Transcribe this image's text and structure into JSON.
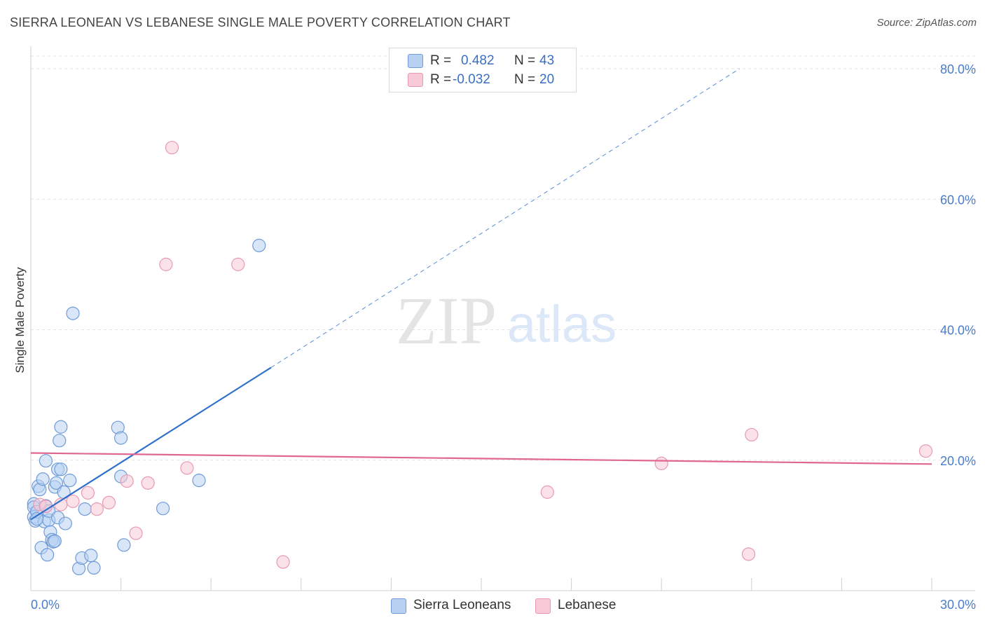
{
  "header": {
    "title": "SIERRA LEONEAN VS LEBANESE SINGLE MALE POVERTY CORRELATION CHART",
    "source": "Source: ZipAtlas.com"
  },
  "watermark": {
    "zip": "ZIP",
    "atlas": "atlas"
  },
  "legend": {
    "rows": [
      {
        "r_label": "R =",
        "r_value": "0.482",
        "n_label": "N =",
        "n_value": "43"
      },
      {
        "r_label": "R =",
        "r_value": "-0.032",
        "n_label": "N =",
        "n_value": "20"
      }
    ]
  },
  "bottom_legend": {
    "series1": "Sierra Leoneans",
    "series2": "Lebanese"
  },
  "colors": {
    "blue_fill": "#b8d1f3",
    "blue_stroke": "#6f9bd8",
    "blue_line": "#2f6fcc",
    "pink_fill": "#f8c9d6",
    "pink_stroke": "#e89ab2",
    "pink_line": "#e06890",
    "grid": "#e3e3e3",
    "tick_text": "#4a7cc9"
  },
  "chart_data": {
    "type": "scatter",
    "title": "SIERRA LEONEAN VS LEBANESE SINGLE MALE POVERTY CORRELATION CHART",
    "xlabel": "",
    "ylabel": "Single Male Poverty",
    "xlim": [
      0,
      30
    ],
    "ylim": [
      0,
      80
    ],
    "x_tick_labels": [
      "0.0%",
      "30.0%"
    ],
    "y_ticks": [
      20,
      40,
      60,
      80
    ],
    "y_tick_labels": [
      "20.0%",
      "40.0%",
      "60.0%",
      "80.0%"
    ],
    "grid": true,
    "legend_position": "top-center",
    "series": [
      {
        "name": "Sierra Leoneans",
        "R": 0.482,
        "N": 43,
        "trend": {
          "x": [
            0,
            8.0
          ],
          "y": [
            10.9,
            34.2
          ],
          "dashed_extension_to": [
            23.6,
            80
          ]
        },
        "points": [
          [
            0.1,
            13.3
          ],
          [
            0.1,
            12.8
          ],
          [
            0.1,
            11.3
          ],
          [
            0.15,
            10.7
          ],
          [
            0.2,
            12.1
          ],
          [
            0.25,
            16.0
          ],
          [
            0.3,
            15.5
          ],
          [
            0.35,
            6.6
          ],
          [
            0.4,
            17.1
          ],
          [
            0.45,
            10.6
          ],
          [
            0.5,
            13.0
          ],
          [
            0.5,
            19.9
          ],
          [
            0.55,
            5.5
          ],
          [
            0.6,
            10.8
          ],
          [
            0.6,
            12.2
          ],
          [
            0.65,
            9.0
          ],
          [
            0.7,
            7.8
          ],
          [
            0.75,
            7.5
          ],
          [
            0.8,
            7.6
          ],
          [
            0.8,
            15.9
          ],
          [
            0.85,
            16.5
          ],
          [
            0.9,
            11.2
          ],
          [
            0.9,
            18.6
          ],
          [
            0.95,
            23.0
          ],
          [
            1.0,
            18.6
          ],
          [
            1.0,
            25.1
          ],
          [
            1.1,
            15.1
          ],
          [
            1.15,
            10.3
          ],
          [
            1.3,
            16.9
          ],
          [
            1.4,
            42.5
          ],
          [
            1.6,
            3.4
          ],
          [
            1.7,
            5.0
          ],
          [
            1.8,
            12.5
          ],
          [
            2.0,
            5.4
          ],
          [
            2.1,
            3.5
          ],
          [
            2.9,
            25.0
          ],
          [
            3.0,
            23.4
          ],
          [
            3.0,
            17.5
          ],
          [
            3.1,
            7.0
          ],
          [
            4.4,
            12.6
          ],
          [
            5.6,
            16.9
          ],
          [
            7.6,
            52.9
          ],
          [
            0.2,
            11.0
          ]
        ]
      },
      {
        "name": "Lebanese",
        "R": -0.032,
        "N": 20,
        "trend": {
          "x": [
            0,
            30
          ],
          "y": [
            21.1,
            19.4
          ]
        },
        "points": [
          [
            0.3,
            13.2
          ],
          [
            0.5,
            12.9
          ],
          [
            1.0,
            13.2
          ],
          [
            1.4,
            13.7
          ],
          [
            1.9,
            15.0
          ],
          [
            2.2,
            12.5
          ],
          [
            2.6,
            13.5
          ],
          [
            3.2,
            16.8
          ],
          [
            3.5,
            8.8
          ],
          [
            3.9,
            16.5
          ],
          [
            4.5,
            50.0
          ],
          [
            4.7,
            67.9
          ],
          [
            5.2,
            18.8
          ],
          [
            6.9,
            50.0
          ],
          [
            8.4,
            4.4
          ],
          [
            17.2,
            15.1
          ],
          [
            21.0,
            19.5
          ],
          [
            23.9,
            5.6
          ],
          [
            24.0,
            23.9
          ],
          [
            29.8,
            21.4
          ]
        ]
      }
    ]
  }
}
